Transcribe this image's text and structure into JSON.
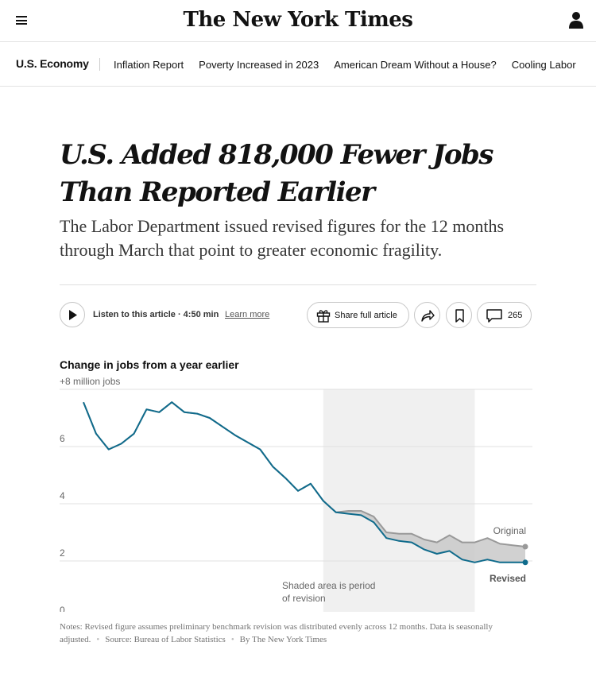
{
  "header": {
    "masthead": "The New York Times",
    "menu_icon": "hamburger-menu-icon",
    "account_icon": "user-icon"
  },
  "nav": {
    "section": "U.S. Economy",
    "items": [
      "Inflation Report",
      "Poverty Increased in 2023",
      "American Dream Without a House?",
      "Cooling Labor"
    ]
  },
  "article": {
    "headline": "U.S. Added 818,000 Fewer Jobs Than Reported Earlier",
    "summary": "The Labor Department issued revised figures for the 12 months through March that point to greater economic fragility."
  },
  "toolbar": {
    "listen_label": "Listen to this article · 4:50 min",
    "learn_more": "Learn more",
    "share_label": "Share full article",
    "comment_count": "265"
  },
  "chart_data": {
    "type": "line",
    "title": "Change in jobs from a year earlier",
    "unit_label": "+8 million jobs",
    "yticks": [
      "6",
      "4",
      "2",
      "0"
    ],
    "ylim": [
      0,
      8
    ],
    "grid": true,
    "shaded_note": "Shaded area is period of revision",
    "shaded_range": [
      19,
      31
    ],
    "series": [
      {
        "name": "Original",
        "color": "#999999",
        "values": [
          7.55,
          6.45,
          5.9,
          6.1,
          6.45,
          7.3,
          7.2,
          7.55,
          7.2,
          7.15,
          7.0,
          6.7,
          6.4,
          6.15,
          5.9,
          5.3,
          4.9,
          4.45,
          4.7,
          4.1,
          3.7,
          3.75,
          3.75,
          3.55,
          3.0,
          2.95,
          2.95,
          2.75,
          2.65,
          2.9,
          2.65,
          2.65,
          2.8,
          2.6,
          2.55,
          2.5
        ]
      },
      {
        "name": "Revised",
        "color": "#0f6b8c",
        "values": [
          7.55,
          6.45,
          5.9,
          6.1,
          6.45,
          7.3,
          7.2,
          7.55,
          7.2,
          7.15,
          7.0,
          6.7,
          6.4,
          6.15,
          5.9,
          5.3,
          4.9,
          4.45,
          4.7,
          4.1,
          3.7,
          3.65,
          3.6,
          3.35,
          2.8,
          2.7,
          2.65,
          2.4,
          2.25,
          2.35,
          2.05,
          1.95,
          2.05,
          1.95,
          1.95,
          1.95
        ]
      }
    ]
  },
  "notes": {
    "text": "Notes: Revised figure assumes preliminary benchmark revision was distributed evenly across 12 months. Data is seasonally adjusted.",
    "source": "Source: Bureau of Labor Statistics",
    "credit": "By The New York Times"
  }
}
